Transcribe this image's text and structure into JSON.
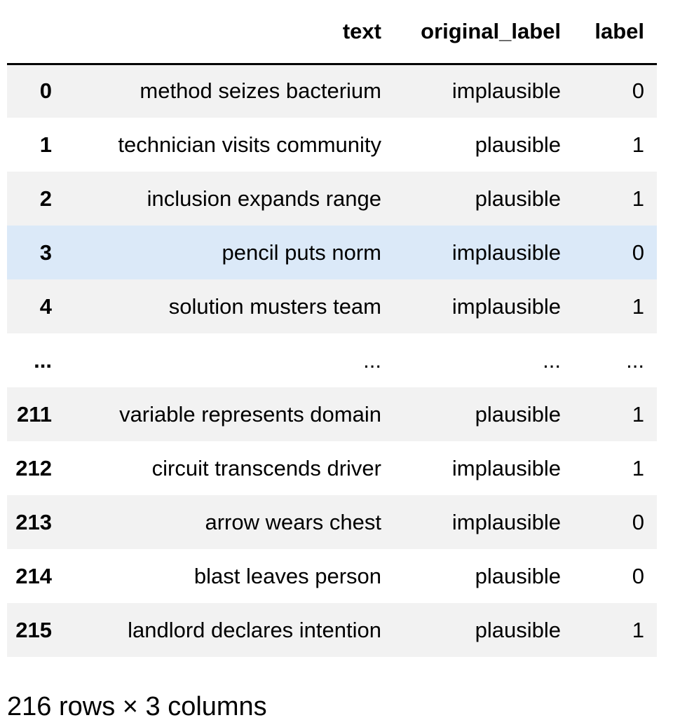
{
  "table": {
    "columns": [
      "",
      "text",
      "original_label",
      "label"
    ],
    "rows": [
      {
        "index": "0",
        "text": "method seizes bacterium",
        "original_label": "implausible",
        "label": "0",
        "style": "odd"
      },
      {
        "index": "1",
        "text": "technician visits community",
        "original_label": "plausible",
        "label": "1",
        "style": "even"
      },
      {
        "index": "2",
        "text": "inclusion expands range",
        "original_label": "plausible",
        "label": "1",
        "style": "odd"
      },
      {
        "index": "3",
        "text": "pencil puts norm",
        "original_label": "implausible",
        "label": "0",
        "style": "hover"
      },
      {
        "index": "4",
        "text": "solution musters team",
        "original_label": "implausible",
        "label": "1",
        "style": "odd"
      },
      {
        "index": "...",
        "text": "...",
        "original_label": "...",
        "label": "...",
        "style": "ellipsis"
      },
      {
        "index": "211",
        "text": "variable represents domain",
        "original_label": "plausible",
        "label": "1",
        "style": "odd"
      },
      {
        "index": "212",
        "text": "circuit transcends driver",
        "original_label": "implausible",
        "label": "1",
        "style": "even"
      },
      {
        "index": "213",
        "text": "arrow wears chest",
        "original_label": "implausible",
        "label": "0",
        "style": "odd"
      },
      {
        "index": "214",
        "text": "blast leaves person",
        "original_label": "plausible",
        "label": "0",
        "style": "even"
      },
      {
        "index": "215",
        "text": "landlord declares intention",
        "original_label": "plausible",
        "label": "1",
        "style": "odd"
      }
    ]
  },
  "shape_text": "216 rows × 3 columns",
  "colors": {
    "row_stripe": "#f2f2f2",
    "row_hover": "#dbe9f8",
    "header_rule": "#000000"
  }
}
